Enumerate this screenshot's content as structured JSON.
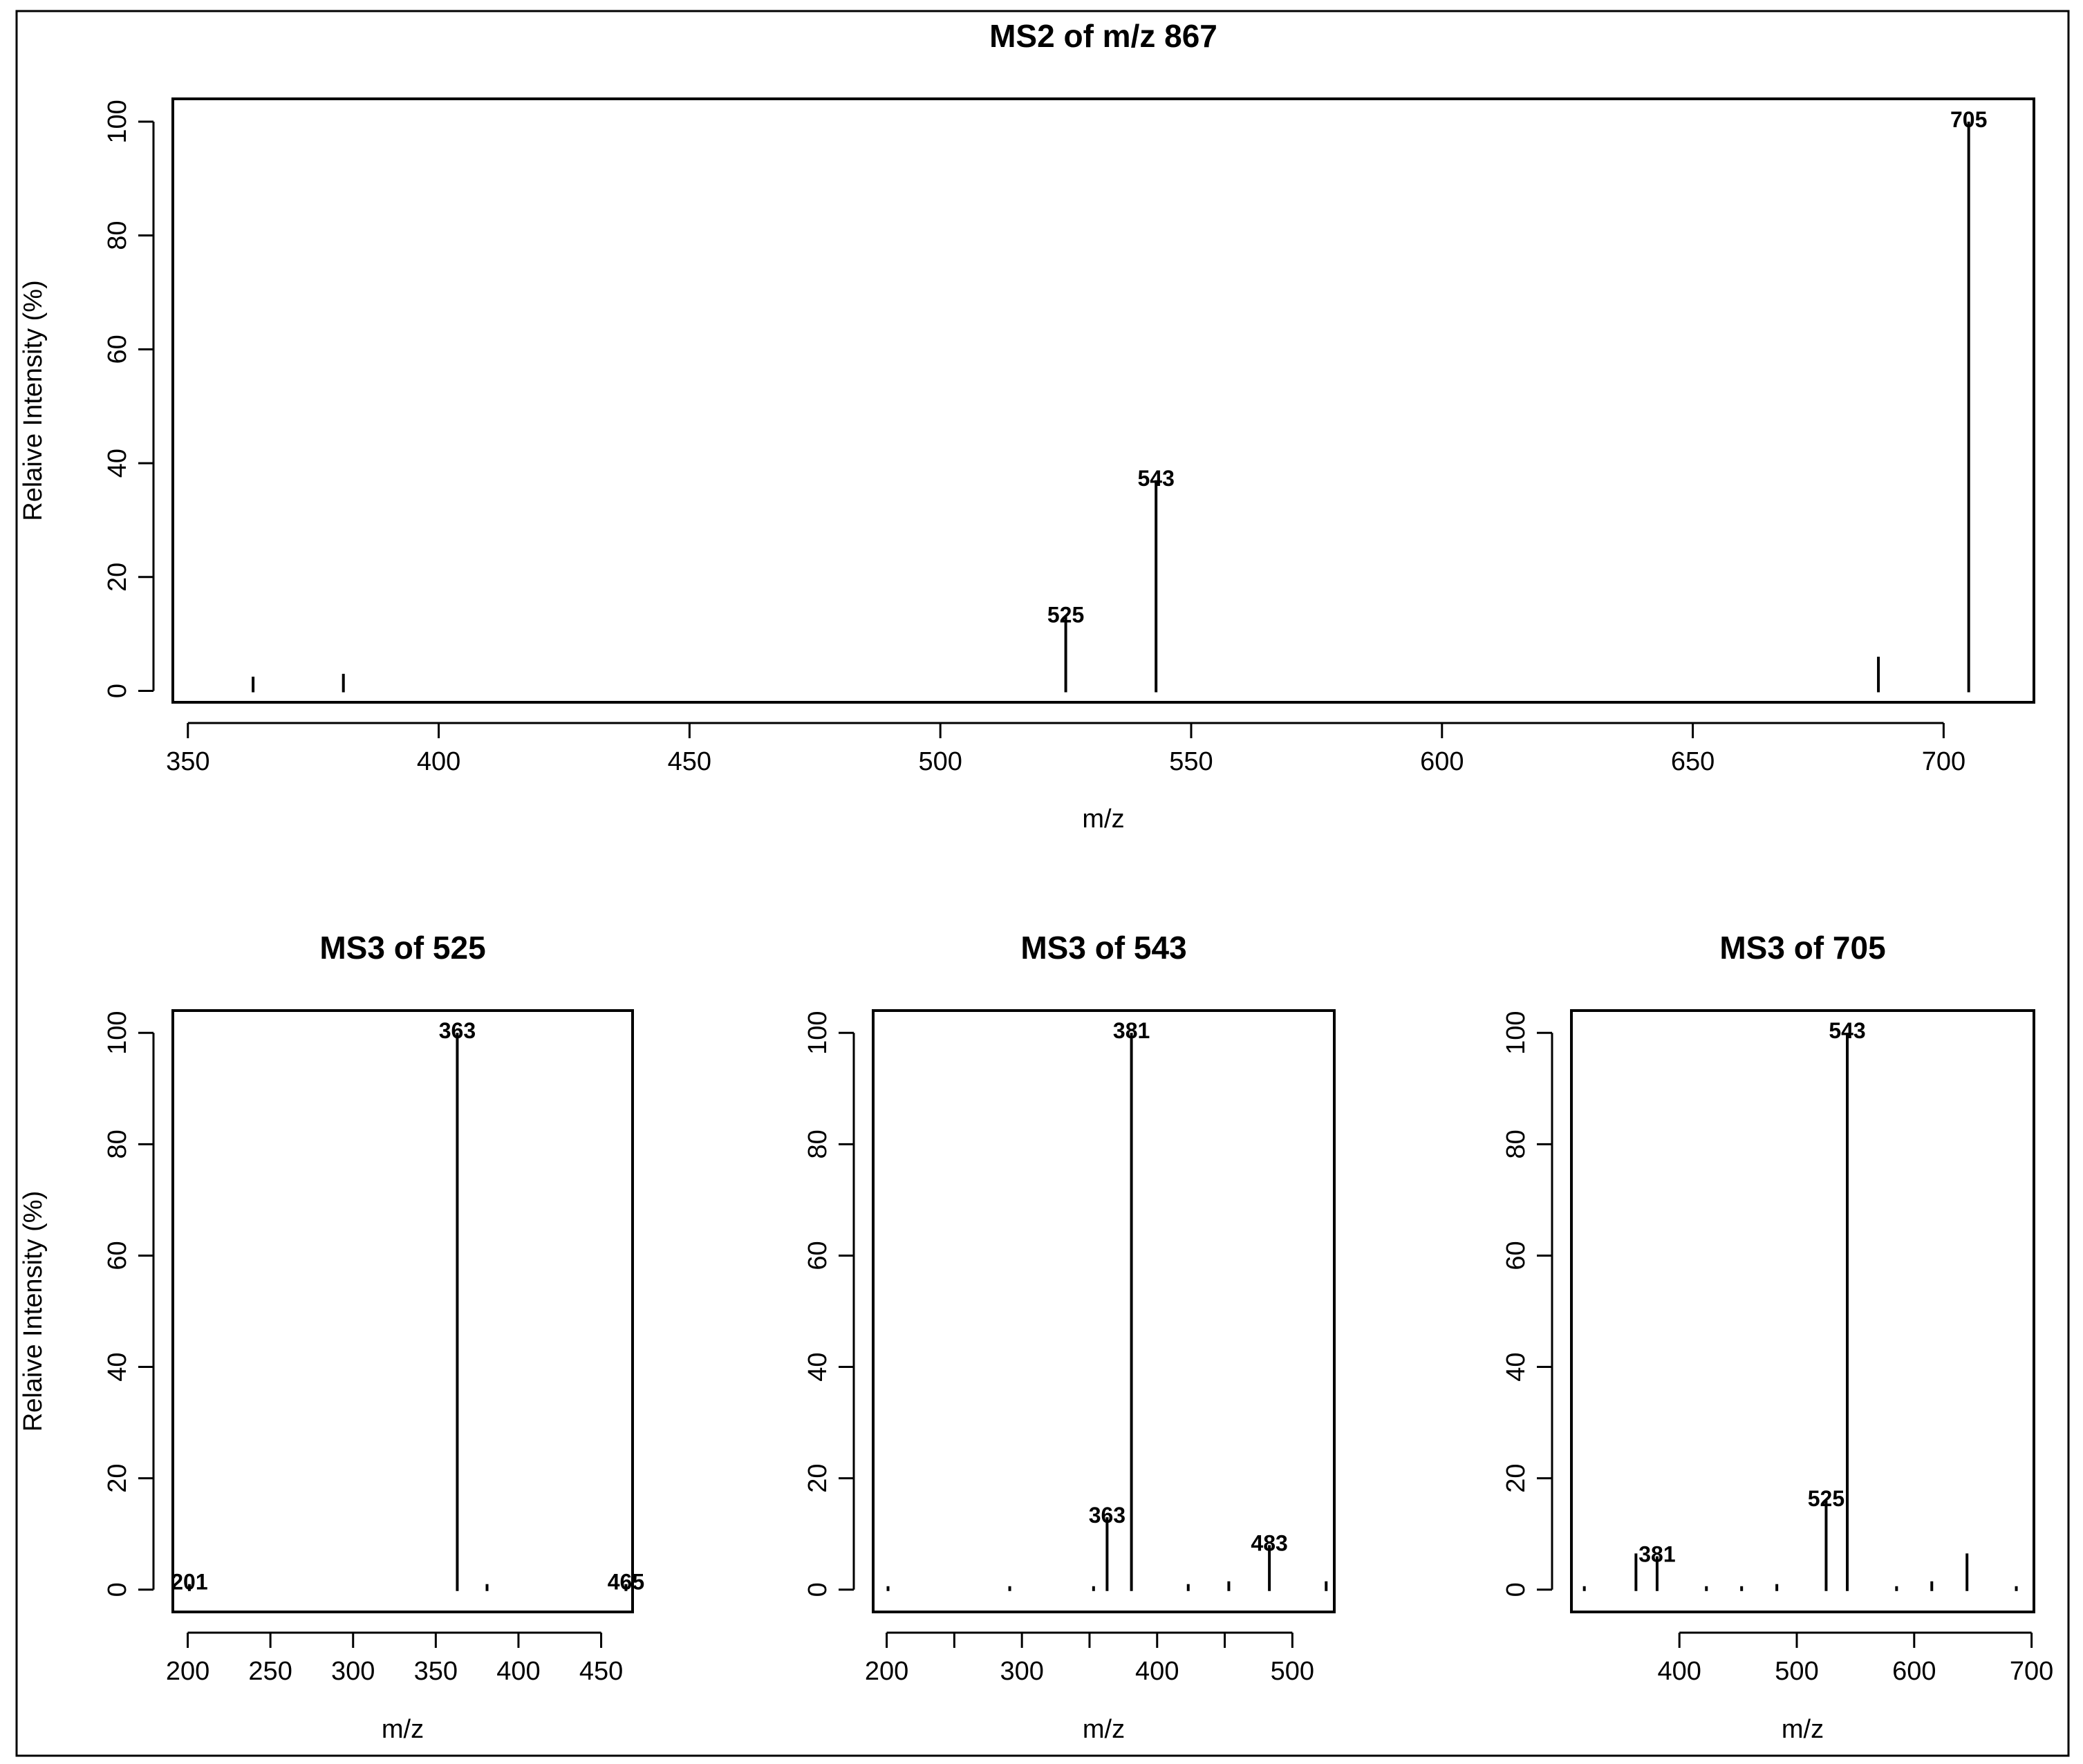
{
  "chart_data": [
    {
      "id": "ms2",
      "type": "bar",
      "title": "MS2 of m/z 867",
      "xlabel": "m/z",
      "ylabel": "Relaive Intensity (%)",
      "xlim": [
        347,
        718
      ],
      "ylim": [
        -2,
        104
      ],
      "xticks": [
        350,
        400,
        450,
        500,
        550,
        600,
        650,
        700
      ],
      "yticks": [
        0,
        20,
        40,
        60,
        80,
        100
      ],
      "grid": false,
      "peaks": [
        {
          "x": 363,
          "y": 2.5
        },
        {
          "x": 381,
          "y": 3
        },
        {
          "x": 525,
          "y": 13,
          "label": "525"
        },
        {
          "x": 543,
          "y": 37,
          "label": "543"
        },
        {
          "x": 687,
          "y": 6
        },
        {
          "x": 705,
          "y": 100,
          "label": "705"
        }
      ]
    },
    {
      "id": "ms3-525",
      "type": "bar",
      "title": "MS3 of 525",
      "xlabel": "m/z",
      "ylabel": "Relaive Intensity (%)",
      "xlim": [
        191,
        469
      ],
      "ylim": [
        -4,
        104
      ],
      "xticks": [
        200,
        250,
        300,
        350,
        400,
        450
      ],
      "yticks": [
        0,
        20,
        40,
        60,
        80,
        100
      ],
      "grid": false,
      "peaks": [
        {
          "x": 201,
          "y": 1,
          "label": "201"
        },
        {
          "x": 363,
          "y": 100,
          "label": "363"
        },
        {
          "x": 381,
          "y": 1
        },
        {
          "x": 465,
          "y": 1,
          "label": "465"
        }
      ]
    },
    {
      "id": "ms3-543",
      "type": "bar",
      "title": "MS3 of 543",
      "xlabel": "m/z",
      "ylabel": "",
      "xlim": [
        190,
        531
      ],
      "ylim": [
        -4,
        104
      ],
      "xticks": [
        200,
        250,
        300,
        350,
        400,
        450,
        500
      ],
      "ytick_labels_shown": [
        0,
        20,
        40,
        60,
        80,
        100
      ],
      "xtick_labels_shown": [
        200,
        300,
        400,
        500
      ],
      "yticks": [
        0,
        20,
        40,
        60,
        80,
        100
      ],
      "grid": false,
      "peaks": [
        {
          "x": 201,
          "y": 0.5
        },
        {
          "x": 291,
          "y": 0.5
        },
        {
          "x": 353,
          "y": 0.5
        },
        {
          "x": 363,
          "y": 13,
          "label": "363"
        },
        {
          "x": 381,
          "y": 100,
          "label": "381"
        },
        {
          "x": 423,
          "y": 1
        },
        {
          "x": 453,
          "y": 1.5
        },
        {
          "x": 483,
          "y": 8,
          "label": "483"
        },
        {
          "x": 525,
          "y": 1.5
        }
      ]
    },
    {
      "id": "ms3-705",
      "type": "bar",
      "title": "MS3 of 705",
      "xlabel": "m/z",
      "ylabel": "",
      "xlim": [
        308,
        702
      ],
      "ylim": [
        -4,
        104
      ],
      "xticks": [
        400,
        500,
        600,
        700
      ],
      "yticks": [
        0,
        20,
        40,
        60,
        80,
        100
      ],
      "grid": false,
      "peaks": [
        {
          "x": 319,
          "y": 0.5
        },
        {
          "x": 363,
          "y": 6.5
        },
        {
          "x": 381,
          "y": 6,
          "label": "381"
        },
        {
          "x": 423,
          "y": 0.5
        },
        {
          "x": 453,
          "y": 0.5
        },
        {
          "x": 483,
          "y": 1
        },
        {
          "x": 525,
          "y": 16,
          "label": "525"
        },
        {
          "x": 543,
          "y": 100,
          "label": "543"
        },
        {
          "x": 585,
          "y": 0.5
        },
        {
          "x": 615,
          "y": 1.5
        },
        {
          "x": 645,
          "y": 6.5
        },
        {
          "x": 687,
          "y": 0.5
        }
      ]
    }
  ]
}
